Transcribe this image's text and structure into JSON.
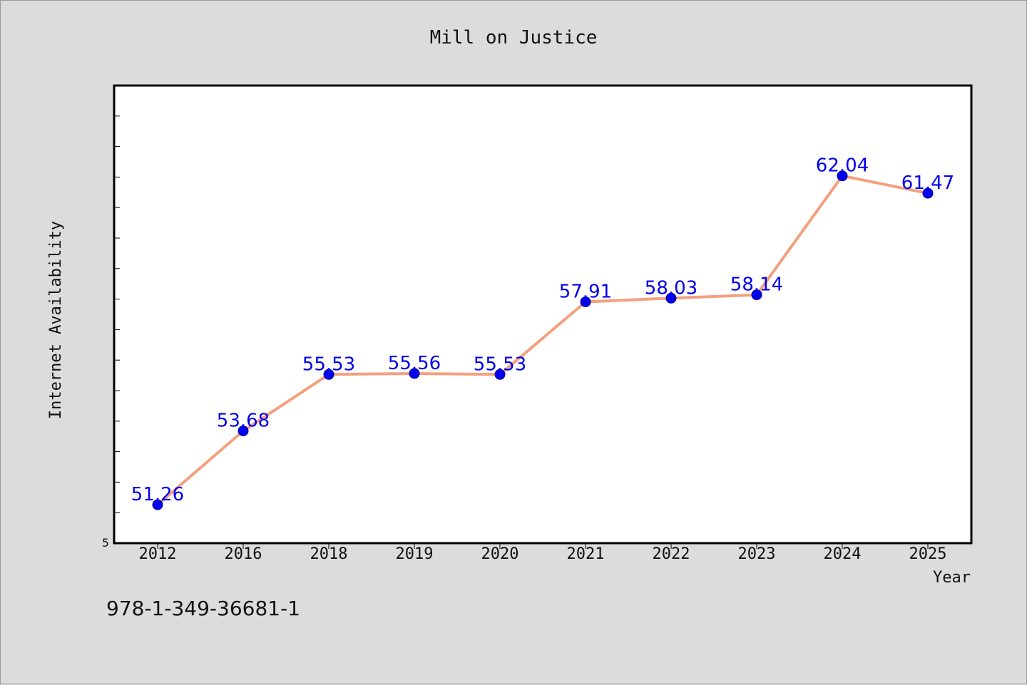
{
  "chart_data": {
    "type": "line",
    "title": "Mill on Justice",
    "xlabel": "Year",
    "ylabel": "Internet Availability",
    "categories": [
      "2012",
      "2016",
      "2018",
      "2019",
      "2020",
      "2021",
      "2022",
      "2023",
      "2024",
      "2025"
    ],
    "series": [
      {
        "values": [
          51.26,
          53.68,
          55.53,
          55.56,
          55.53,
          57.91,
          58.03,
          58.14,
          62.04,
          61.47
        ],
        "line_color": "#f4a07f",
        "marker_color": "#0000ee"
      }
    ],
    "data_labels": [
      "51.26",
      "53.68",
      "55.53",
      "55.56",
      "55.53",
      "57.91",
      "58.03",
      "58.14",
      "62.04",
      "61.47"
    ],
    "ytick_labels": [
      "5"
    ],
    "ylim": [
      50,
      65
    ],
    "grid": false,
    "legend": "none"
  },
  "footer": {
    "isbn": "978-1-349-36681-1"
  }
}
